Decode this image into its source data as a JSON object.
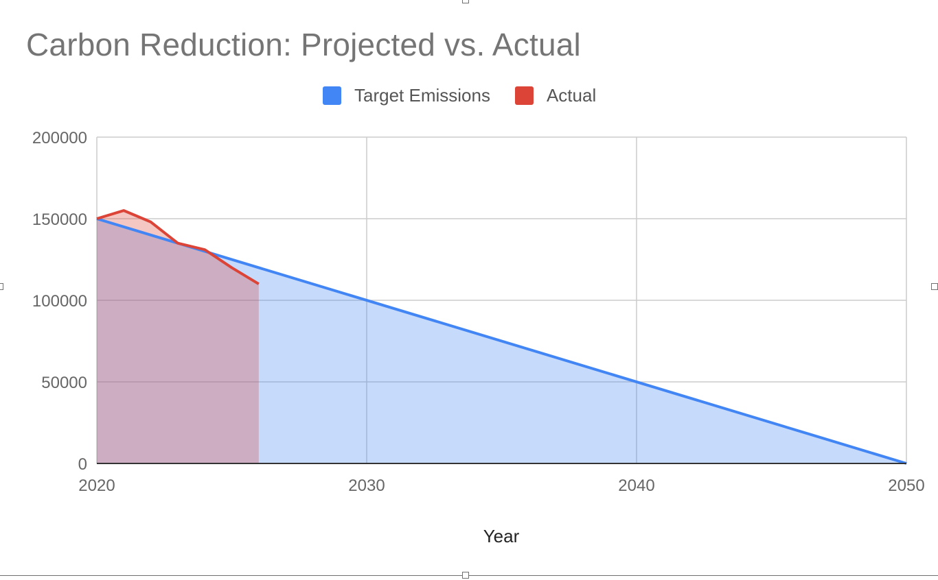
{
  "chart_data": {
    "type": "area",
    "title": "Carbon Reduction: Projected vs. Actual",
    "xlabel": "Year",
    "ylabel": "",
    "xlim": [
      2020,
      2050
    ],
    "ylim": [
      0,
      200000
    ],
    "x_ticks": [
      "2020",
      "2030",
      "2040",
      "2050"
    ],
    "y_ticks": [
      "0",
      "50000",
      "100000",
      "150000",
      "200000"
    ],
    "grid": true,
    "legend_position": "top",
    "series": [
      {
        "name": "Target Emissions",
        "color": "#4285F4",
        "points": [
          [
            2020,
            150000
          ],
          [
            2050,
            0
          ]
        ]
      },
      {
        "name": "Actual",
        "color": "#DB4437",
        "points": [
          [
            2020,
            150000
          ],
          [
            2021,
            155000
          ],
          [
            2022,
            148000
          ],
          [
            2023,
            135000
          ],
          [
            2024,
            131000
          ],
          [
            2025,
            120000
          ],
          [
            2026,
            110000
          ]
        ]
      }
    ]
  }
}
